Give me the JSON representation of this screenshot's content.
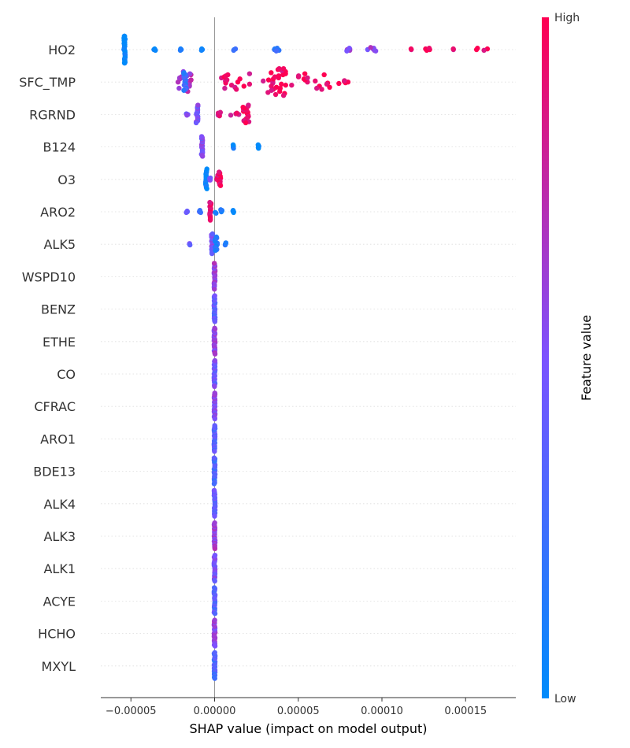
{
  "chart_data": {
    "type": "scatter",
    "subtype": "shap-beeswarm",
    "title": "",
    "xlabel": "SHAP value (impact on model output)",
    "xlim": [
      -6.8e-05,
      0.00018
    ],
    "x_ticks": [
      {
        "value": -5e-05,
        "label": "−0.00005"
      },
      {
        "value": 0.0,
        "label": "0.00000"
      },
      {
        "value": 5e-05,
        "label": "0.00005"
      },
      {
        "value": 0.0001,
        "label": "0.00010"
      },
      {
        "value": 0.00015,
        "label": "0.00015"
      }
    ],
    "zero_line": 0.0,
    "grid": "horizontal dotted per feature",
    "colorbar": {
      "title": "Feature value",
      "high_label": "High",
      "low_label": "Low",
      "low_color": "#008bfb",
      "mid_color": "#7c52ff",
      "high_color": "#ff0052",
      "placement": "right"
    },
    "features": [
      {
        "name": "HO2",
        "clusters": [
          {
            "x": -5.38e-05,
            "n": 30,
            "v": 0.02,
            "spread": 4e-07
          },
          {
            "x": -3.6e-05,
            "n": 3,
            "v": 0.05,
            "spread": 8e-07
          },
          {
            "x": -2.05e-05,
            "n": 3,
            "v": 0.08,
            "spread": 8e-07
          },
          {
            "x": -8e-06,
            "n": 3,
            "v": 0.1,
            "spread": 8e-07
          },
          {
            "x": 1.2e-05,
            "n": 3,
            "v": 0.15,
            "spread": 8e-07
          },
          {
            "x": 3.7e-05,
            "n": 5,
            "v": 0.25,
            "spread": 1.5e-06
          },
          {
            "x": 8e-05,
            "n": 5,
            "v": 0.55,
            "spread": 1e-06
          },
          {
            "x": 9.4e-05,
            "n": 6,
            "v": 0.6,
            "spread": 3e-06
          },
          {
            "x": 0.000118,
            "n": 2,
            "v": 0.85,
            "spread": 6e-07
          },
          {
            "x": 0.000128,
            "n": 4,
            "v": 0.88,
            "spread": 2e-06
          },
          {
            "x": 0.000143,
            "n": 2,
            "v": 0.9,
            "spread": 6e-07
          },
          {
            "x": 0.000161,
            "n": 4,
            "v": 0.97,
            "spread": 5e-06
          }
        ]
      },
      {
        "name": "SFC_TMP",
        "clusters": [
          {
            "x": -1.85e-05,
            "n": 20,
            "v": 0.65,
            "spread": 4.5e-06
          },
          {
            "x": -1.77e-05,
            "n": 18,
            "v": 0.25,
            "spread": 8e-07
          },
          {
            "x": 1.2e-05,
            "n": 16,
            "v": 0.92,
            "spread": 9e-06
          },
          {
            "x": 3.6e-05,
            "n": 28,
            "v": 0.95,
            "spread": 7e-06
          },
          {
            "x": 5.8e-05,
            "n": 16,
            "v": 0.98,
            "spread": 1.2e-05
          },
          {
            "x": 7.7e-05,
            "n": 5,
            "v": 0.97,
            "spread": 3e-06
          }
        ]
      },
      {
        "name": "RGRND",
        "clusters": [
          {
            "x": -1.05e-05,
            "n": 18,
            "v": 0.5,
            "spread": 6e-07
          },
          {
            "x": -1.65e-05,
            "n": 3,
            "v": 0.55,
            "spread": 6e-07
          },
          {
            "x": 3e-06,
            "n": 6,
            "v": 0.85,
            "spread": 1e-06
          },
          {
            "x": 1.9e-05,
            "n": 18,
            "v": 0.97,
            "spread": 2e-06
          },
          {
            "x": 1.2e-05,
            "n": 4,
            "v": 0.88,
            "spread": 2.5e-06
          }
        ]
      },
      {
        "name": "B124",
        "clusters": [
          {
            "x": -7.5e-06,
            "n": 20,
            "v": 0.5,
            "spread": 4e-07
          },
          {
            "x": 1.12e-05,
            "n": 6,
            "v": 0.05,
            "spread": 3e-07
          },
          {
            "x": 2.62e-05,
            "n": 6,
            "v": 0.05,
            "spread": 3e-07
          }
        ]
      },
      {
        "name": "O3",
        "clusters": [
          {
            "x": -5e-06,
            "n": 20,
            "v": 0.05,
            "spread": 4e-07
          },
          {
            "x": 2.5e-06,
            "n": 14,
            "v": 0.95,
            "spread": 1.5e-06
          },
          {
            "x": -3e-06,
            "n": 4,
            "v": 0.5,
            "spread": 5e-07
          }
        ]
      },
      {
        "name": "ARO2",
        "clusters": [
          {
            "x": -2.5e-06,
            "n": 18,
            "v": 0.9,
            "spread": 4e-07
          },
          {
            "x": -8.5e-06,
            "n": 4,
            "v": 0.3,
            "spread": 6e-07
          },
          {
            "x": -1.65e-05,
            "n": 3,
            "v": 0.35,
            "spread": 4e-07
          },
          {
            "x": 2e-06,
            "n": 6,
            "v": 0.1,
            "spread": 2.5e-06
          },
          {
            "x": 1.12e-05,
            "n": 4,
            "v": 0.05,
            "spread": 3e-07
          }
        ]
      },
      {
        "name": "ALK5",
        "clusters": [
          {
            "x": -1.5e-06,
            "n": 20,
            "v": 0.5,
            "spread": 4e-07
          },
          {
            "x": 1e-06,
            "n": 14,
            "v": 0.15,
            "spread": 8e-07
          },
          {
            "x": -1.5e-05,
            "n": 3,
            "v": 0.4,
            "spread": 4e-07
          },
          {
            "x": 6.5e-06,
            "n": 4,
            "v": 0.05,
            "spread": 3e-07
          }
        ]
      },
      {
        "name": "WSPD10",
        "clusters": [
          {
            "x": 0.0,
            "n": 26,
            "v": 0.6,
            "spread": 3e-07
          }
        ]
      },
      {
        "name": "BENZ",
        "clusters": [
          {
            "x": 0.0,
            "n": 26,
            "v": 0.4,
            "spread": 3e-07
          }
        ]
      },
      {
        "name": "ETHE",
        "clusters": [
          {
            "x": 0.0,
            "n": 26,
            "v": 0.6,
            "spread": 3e-07
          }
        ]
      },
      {
        "name": "CO",
        "clusters": [
          {
            "x": 0.0,
            "n": 26,
            "v": 0.45,
            "spread": 3e-07
          }
        ]
      },
      {
        "name": "CFRAC",
        "clusters": [
          {
            "x": 0.0,
            "n": 26,
            "v": 0.55,
            "spread": 3e-07
          }
        ]
      },
      {
        "name": "ARO1",
        "clusters": [
          {
            "x": 0.0,
            "n": 26,
            "v": 0.35,
            "spread": 3e-07
          }
        ]
      },
      {
        "name": "BDE13",
        "clusters": [
          {
            "x": 0.0,
            "n": 26,
            "v": 0.3,
            "spread": 3e-07
          }
        ]
      },
      {
        "name": "ALK4",
        "clusters": [
          {
            "x": 0.0,
            "n": 26,
            "v": 0.4,
            "spread": 3e-07
          }
        ]
      },
      {
        "name": "ALK3",
        "clusters": [
          {
            "x": 0.0,
            "n": 26,
            "v": 0.6,
            "spread": 3e-07
          }
        ]
      },
      {
        "name": "ALK1",
        "clusters": [
          {
            "x": 0.0,
            "n": 26,
            "v": 0.5,
            "spread": 3e-07
          }
        ]
      },
      {
        "name": "ACYE",
        "clusters": [
          {
            "x": 0.0,
            "n": 26,
            "v": 0.35,
            "spread": 3e-07
          }
        ]
      },
      {
        "name": "HCHO",
        "clusters": [
          {
            "x": 0.0,
            "n": 26,
            "v": 0.6,
            "spread": 3e-07
          }
        ]
      },
      {
        "name": "MXYL",
        "clusters": [
          {
            "x": 0.0,
            "n": 26,
            "v": 0.3,
            "spread": 3e-07
          }
        ]
      }
    ]
  }
}
